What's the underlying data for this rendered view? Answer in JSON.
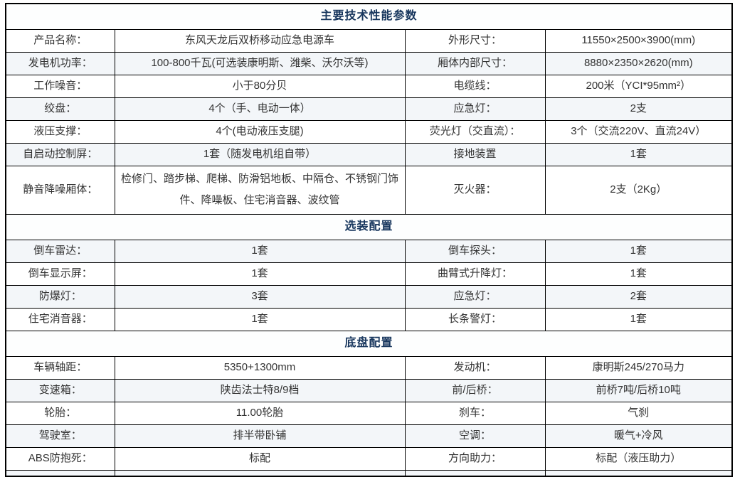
{
  "table": {
    "sections": [
      {
        "header": "主要技术性能参数",
        "start_shaded": false,
        "rows": [
          {
            "cells": [
              "产品名称：",
              "东风天龙后双桥移动应急电源车",
              "外形尺寸：",
              "11550×2500×3900(mm)"
            ]
          },
          {
            "cells": [
              "发电机功率：",
              "100-800千瓦(可选装康明斯、潍柴、沃尔沃等)",
              "厢体内部尺寸：",
              "8880×2350×2620(mm)"
            ]
          },
          {
            "cells": [
              "工作噪音：",
              "小于80分贝",
              "电缆线：",
              "200米（YCI*95mm²）"
            ]
          },
          {
            "cells": [
              "绞盘：",
              "4个（手、电动一体）",
              "应急灯：",
              "2支"
            ]
          },
          {
            "cells": [
              "液压支撑：",
              "4个(电动液压支腿)",
              "荧光灯（交直流）：",
              "3个（交流220V、直流24V）"
            ]
          },
          {
            "cells": [
              "自启动控制屏：",
              "1套（随发电机组自带）",
              "接地装置",
              "1套"
            ]
          },
          {
            "cells": [
              "静音降噪厢体：",
              "检修门、踏步梯、爬梯、防滑铝地板、中隔仓、不锈钢门饰件、降噪板、住宅消音器、波纹管",
              "灭火器：",
              "2支（2Kg）"
            ],
            "tall": true
          }
        ]
      },
      {
        "header": "选装配置",
        "start_shaded": true,
        "rows": [
          {
            "cells": [
              "倒车雷达：",
              "1套",
              "倒车探头：",
              "1套"
            ]
          },
          {
            "cells": [
              "倒车显示屏：",
              "1套",
              "曲臂式升降灯：",
              "1套"
            ]
          },
          {
            "cells": [
              "防爆灯：",
              "3套",
              "应急灯：",
              "2套"
            ]
          },
          {
            "cells": [
              "住宅消音器：",
              "1套",
              "长条警灯：",
              "1套"
            ]
          }
        ]
      },
      {
        "header": "底盘配置",
        "start_shaded": false,
        "rows": [
          {
            "cells": [
              "车辆轴距：",
              "5350+1300mm",
              "发动机：",
              "康明斯245/270马力"
            ]
          },
          {
            "cells": [
              "变速箱：",
              "陕齿法士特8/9档",
              "前/后桥：",
              "前桥7吨/后桥10吨"
            ]
          },
          {
            "cells": [
              "轮胎：",
              "11.00轮胎",
              "刹车：",
              "气刹"
            ]
          },
          {
            "cells": [
              "驾驶室：",
              "排半带卧铺",
              "空调：",
              "暖气+冷风"
            ]
          },
          {
            "cells": [
              "ABS防抱死：",
              "标配",
              "方向助力：",
              "标配（液压助力）"
            ]
          }
        ]
      }
    ]
  },
  "colors": {
    "section_header_text": "#17365D",
    "body_text": "#333333",
    "row_shade": "#F3F6F9",
    "border": "#000000",
    "background": "#FFFFFF"
  }
}
